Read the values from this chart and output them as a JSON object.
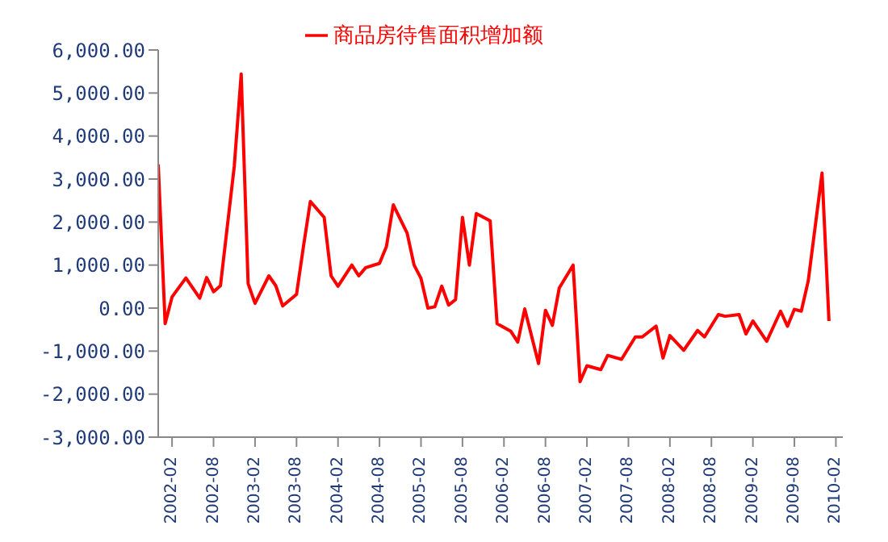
{
  "chart_data": {
    "type": "line",
    "x": [
      "2001-12",
      "2002-01",
      "2002-02",
      "2002-04",
      "2002-06",
      "2002-07",
      "2002-08",
      "2002-09",
      "2002-11",
      "2002-12",
      "2003-01",
      "2003-02",
      "2003-04",
      "2003-05",
      "2003-06",
      "2003-08",
      "2003-09",
      "2003-10",
      "2003-12",
      "2004-01",
      "2004-02",
      "2004-04",
      "2004-05",
      "2004-06",
      "2004-08",
      "2004-09",
      "2004-10",
      "2004-12",
      "2005-01",
      "2005-02",
      "2005-03",
      "2005-04",
      "2005-05",
      "2005-06",
      "2005-07",
      "2005-08",
      "2005-09",
      "2005-10",
      "2005-12",
      "2006-01",
      "2006-03",
      "2006-04",
      "2006-05",
      "2006-07",
      "2006-08",
      "2006-09",
      "2006-10",
      "2006-12",
      "2007-01",
      "2007-02",
      "2007-04",
      "2007-05",
      "2007-07",
      "2007-09",
      "2007-10",
      "2007-12",
      "2008-01",
      "2008-02",
      "2008-04",
      "2008-06",
      "2008-07",
      "2008-09",
      "2008-10",
      "2008-12",
      "2009-01",
      "2009-02",
      "2009-04",
      "2009-06",
      "2009-07",
      "2009-08",
      "2009-09",
      "2009-10",
      "2009-12",
      "2010-01"
    ],
    "series": [
      {
        "name": "商品房待售面积增加额",
        "color": "#ff0000",
        "values": [
          3340,
          -360,
          260,
          700,
          230,
          710,
          380,
          520,
          3300,
          5440,
          570,
          110,
          750,
          520,
          50,
          320,
          1430,
          2480,
          2110,
          750,
          510,
          1000,
          750,
          940,
          1040,
          1430,
          2400,
          1740,
          1000,
          690,
          0,
          30,
          510,
          70,
          200,
          2110,
          1000,
          2200,
          2030,
          -360,
          -540,
          -790,
          -20,
          -1290,
          -50,
          -400,
          470,
          1000,
          -1710,
          -1340,
          -1430,
          -1100,
          -1190,
          -670,
          -670,
          -420,
          -1160,
          -640,
          -980,
          -520,
          -670,
          -150,
          -190,
          -150,
          -600,
          -300,
          -770,
          -70,
          -420,
          -30,
          -70,
          630,
          3140,
          -300
        ]
      }
    ],
    "xlim": [
      "2001-12",
      "2010-03"
    ],
    "xticks": [
      "2002-02",
      "2002-08",
      "2003-02",
      "2003-08",
      "2004-02",
      "2004-08",
      "2005-02",
      "2005-08",
      "2006-02",
      "2006-08",
      "2007-02",
      "2007-08",
      "2008-02",
      "2008-08",
      "2009-02",
      "2009-08",
      "2010-02"
    ],
    "ylim": [
      -3000,
      6000
    ],
    "yticks": [
      {
        "value": -3000,
        "label": "-3,000.00"
      },
      {
        "value": -2000,
        "label": "-2,000.00"
      },
      {
        "value": -1000,
        "label": "-1,000.00"
      },
      {
        "value": 0,
        "label": "0.00"
      },
      {
        "value": 1000,
        "label": "1,000.00"
      },
      {
        "value": 2000,
        "label": "2,000.00"
      },
      {
        "value": 3000,
        "label": "3,000.00"
      },
      {
        "value": 4000,
        "label": "4,000.00"
      },
      {
        "value": 5000,
        "label": "5,000.00"
      },
      {
        "value": 6000,
        "label": "6,000.00"
      }
    ],
    "grid": false,
    "legend": "top",
    "marker": "none",
    "line_style": "solid"
  }
}
